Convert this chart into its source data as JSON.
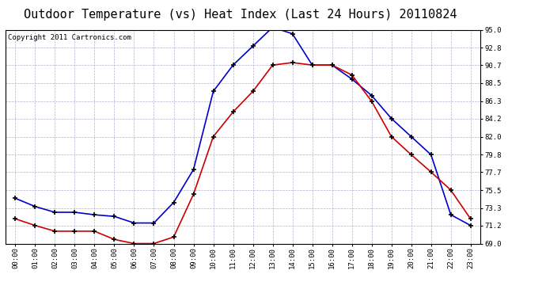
{
  "title": "Outdoor Temperature (vs) Heat Index (Last 24 Hours) 20110824",
  "copyright": "Copyright 2011 Cartronics.com",
  "x_labels": [
    "00:00",
    "01:00",
    "02:00",
    "03:00",
    "04:00",
    "05:00",
    "06:00",
    "07:00",
    "08:00",
    "09:00",
    "10:00",
    "11:00",
    "12:00",
    "13:00",
    "14:00",
    "15:00",
    "16:00",
    "17:00",
    "18:00",
    "19:00",
    "20:00",
    "21:00",
    "22:00",
    "23:00"
  ],
  "blue_data": [
    74.5,
    73.5,
    72.8,
    72.8,
    72.5,
    72.3,
    71.5,
    71.5,
    74.0,
    78.0,
    87.5,
    90.7,
    93.0,
    95.3,
    94.5,
    90.7,
    90.7,
    89.0,
    87.0,
    84.2,
    82.0,
    79.8,
    72.5,
    71.2
  ],
  "red_data": [
    72.0,
    71.2,
    70.5,
    70.5,
    70.5,
    69.5,
    69.0,
    69.0,
    69.8,
    75.0,
    82.0,
    85.0,
    87.5,
    90.7,
    91.0,
    90.7,
    90.7,
    89.5,
    86.3,
    82.0,
    79.8,
    77.7,
    75.5,
    72.0
  ],
  "ylim": [
    69.0,
    95.0
  ],
  "yticks": [
    69.0,
    71.2,
    73.3,
    75.5,
    77.7,
    79.8,
    82.0,
    84.2,
    86.3,
    88.5,
    90.7,
    92.8,
    95.0
  ],
  "blue_color": "#0000cc",
  "red_color": "#cc0000",
  "bg_color": "#ffffff",
  "plot_bg_color": "#ffffff",
  "grid_color": "#aaaacc",
  "title_fontsize": 11,
  "copyright_fontsize": 6.5
}
